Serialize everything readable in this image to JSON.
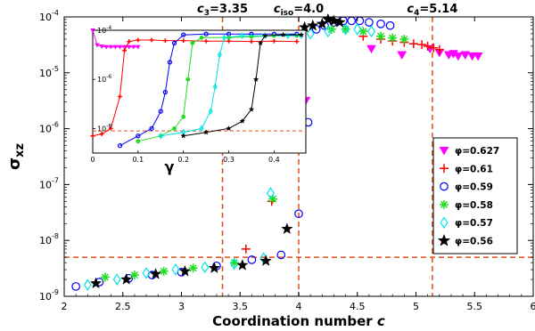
{
  "chart_data": [
    {
      "type": "scatter",
      "xlabel": "Coordination number c",
      "ylabel": "σxz",
      "xlim": [
        2,
        6
      ],
      "ylim": [
        1e-09,
        0.0001
      ],
      "yscale": "log",
      "x_ticks": [
        2,
        2.5,
        3,
        3.5,
        4,
        4.5,
        5,
        5.5,
        6
      ],
      "x_tick_labels": [
        "2",
        "2.5",
        "3",
        "3.5",
        "4",
        "4.5",
        "5",
        "5.5",
        "6"
      ],
      "y_ticks": [
        1e-09,
        1e-08,
        1e-07,
        1e-06,
        1e-05,
        0.0001
      ],
      "y_tick_labels": [
        [
          "10",
          "-9"
        ],
        [
          "10",
          "-8"
        ],
        [
          "10",
          "-7"
        ],
        [
          "10",
          "-6"
        ],
        [
          "10",
          "-5"
        ],
        [
          "10",
          "-4"
        ]
      ],
      "annotations": [
        {
          "main": "c",
          "sub": "3",
          "rest": "=3.35",
          "x": 3.35
        },
        {
          "main": "c",
          "sub": "iso",
          "rest": "=4.0",
          "x": 4.0
        },
        {
          "main": "c",
          "sub": "4",
          "rest": "=5.14",
          "x": 5.14
        }
      ],
      "dashed_vlines": [
        3.35,
        4.0,
        5.14
      ],
      "dashed_hline": 5e-09,
      "legend_position": "right",
      "series": [
        {
          "name": "φ=0.627",
          "marker": "triangle-down",
          "color": "#ff00ff",
          "points": [
            [
              4.88,
              2.1e-05
            ],
            [
              5.12,
              2.7e-05
            ],
            [
              5.2,
              2.3e-05
            ],
            [
              5.28,
              2.1e-05
            ],
            [
              5.32,
              2.2e-05
            ],
            [
              5.36,
              2e-05
            ],
            [
              5.42,
              2.1e-05
            ],
            [
              5.48,
              2e-05
            ],
            [
              5.53,
              2e-05
            ],
            [
              4.06,
              3.2e-06
            ],
            [
              4.62,
              2.7e-05
            ]
          ]
        },
        {
          "name": "φ=0.61",
          "marker": "plus",
          "color": "#ff0000",
          "points": [
            [
              3.55,
              7e-09
            ],
            [
              3.77,
              5e-08
            ],
            [
              4.55,
              4.5e-05
            ],
            [
              4.7,
              4e-05
            ],
            [
              4.8,
              3.7e-05
            ],
            [
              4.9,
              3.5e-05
            ],
            [
              4.98,
              3.3e-05
            ],
            [
              5.05,
              3.2e-05
            ],
            [
              5.1,
              3e-05
            ],
            [
              5.15,
              2.8e-05
            ],
            [
              5.2,
              2.6e-05
            ]
          ]
        },
        {
          "name": "φ=0.59",
          "marker": "circle",
          "color": "#0000ff",
          "points": [
            [
              2.1,
              1.5e-09
            ],
            [
              2.3,
              1.8e-09
            ],
            [
              2.55,
              2.1e-09
            ],
            [
              2.75,
              2.4e-09
            ],
            [
              3.0,
              2.7e-09
            ],
            [
              3.3,
              3.5e-09
            ],
            [
              3.6,
              4.5e-09
            ],
            [
              3.85,
              5.5e-09
            ],
            [
              4.0,
              3e-08
            ],
            [
              4.08,
              1.3e-06
            ],
            [
              4.15,
              6e-05
            ],
            [
              4.22,
              7e-05
            ],
            [
              4.3,
              8e-05
            ],
            [
              4.38,
              8.5e-05
            ],
            [
              4.45,
              8.5e-05
            ],
            [
              4.52,
              8.5e-05
            ],
            [
              4.6,
              8e-05
            ],
            [
              4.7,
              7.5e-05
            ],
            [
              4.78,
              7e-05
            ]
          ]
        },
        {
          "name": "φ=0.58",
          "marker": "asterisk",
          "color": "#22dd22",
          "points": [
            [
              2.35,
              2.2e-09
            ],
            [
              2.6,
              2.4e-09
            ],
            [
              2.85,
              2.8e-09
            ],
            [
              3.1,
              3.2e-09
            ],
            [
              3.45,
              4e-09
            ],
            [
              3.78,
              5.5e-08
            ],
            [
              4.02,
              1.7e-05
            ],
            [
              4.28,
              6e-05
            ],
            [
              4.4,
              6e-05
            ],
            [
              4.55,
              5.5e-05
            ],
            [
              4.7,
              4.5e-05
            ],
            [
              4.8,
              4.2e-05
            ],
            [
              4.9,
              4e-05
            ]
          ]
        },
        {
          "name": "φ=0.57",
          "marker": "diamond",
          "color": "#00e5e5",
          "points": [
            [
              2.2,
              1.6e-09
            ],
            [
              2.45,
              2e-09
            ],
            [
              2.7,
              2.6e-09
            ],
            [
              2.95,
              3e-09
            ],
            [
              3.2,
              3.3e-09
            ],
            [
              3.45,
              3.8e-09
            ],
            [
              3.7,
              4.8e-09
            ],
            [
              3.76,
              7e-08
            ],
            [
              3.92,
              1.1e-06
            ],
            [
              4.02,
              4.5e-05
            ],
            [
              4.1,
              5e-05
            ],
            [
              4.25,
              5.5e-05
            ],
            [
              4.4,
              6e-05
            ],
            [
              4.5,
              6e-05
            ],
            [
              4.62,
              5.5e-05
            ]
          ]
        },
        {
          "name": "φ=0.56",
          "marker": "star",
          "color": "#000000",
          "points": [
            [
              2.27,
              1.7e-09
            ],
            [
              2.53,
              2e-09
            ],
            [
              2.78,
              2.5e-09
            ],
            [
              3.03,
              2.8e-09
            ],
            [
              3.28,
              3.2e-09
            ],
            [
              3.52,
              3.6e-09
            ],
            [
              3.72,
              4.3e-09
            ],
            [
              3.9,
              1.6e-08
            ],
            [
              4.05,
              6.5e-05
            ],
            [
              4.12,
              7e-05
            ],
            [
              4.2,
              7.5e-05
            ],
            [
              4.25,
              9e-05
            ],
            [
              4.3,
              8.5e-05
            ],
            [
              4.35,
              8e-05
            ]
          ]
        }
      ]
    },
    {
      "type": "line",
      "xlabel": "γ",
      "ylabel": "",
      "xlim": [
        0,
        0.47
      ],
      "ylim": [
        1e-09,
        0.0001
      ],
      "yscale": "log",
      "x_ticks": [
        0,
        0.1,
        0.2,
        0.3,
        0.4
      ],
      "x_tick_labels": [
        "0",
        "0.1",
        "0.2",
        "0.3",
        "0.4"
      ],
      "y_ticks": [
        1e-08,
        1e-06,
        0.0001
      ],
      "y_tick_labels": [
        [
          "10",
          "-8"
        ],
        [
          "10",
          "-6"
        ],
        [
          "10",
          "-4"
        ]
      ],
      "dashed_hline": 8e-09,
      "series": [
        {
          "name": "φ=0.627",
          "marker": "triangle-down",
          "color": "#ff00ff",
          "points": [
            [
              0,
              0.0001
            ],
            [
              0.01,
              2.5e-05
            ],
            [
              0.02,
              2.2e-05
            ],
            [
              0.03,
              2.1e-05
            ],
            [
              0.04,
              2.1e-05
            ],
            [
              0.05,
              2.1e-05
            ],
            [
              0.06,
              2.1e-05
            ],
            [
              0.07,
              2.1e-05
            ],
            [
              0.08,
              2.1e-05
            ],
            [
              0.09,
              2.1e-05
            ],
            [
              0.1,
              2.1e-05
            ]
          ]
        },
        {
          "name": "φ=0.61",
          "marker": "plus",
          "color": "#ff0000",
          "points": [
            [
              0,
              5e-09
            ],
            [
              0.02,
              6e-09
            ],
            [
              0.04,
              1e-08
            ],
            [
              0.06,
              2e-07
            ],
            [
              0.07,
              1.5e-05
            ],
            [
              0.08,
              3.5e-05
            ],
            [
              0.1,
              4e-05
            ],
            [
              0.13,
              4e-05
            ],
            [
              0.16,
              3.8e-05
            ],
            [
              0.2,
              3.8e-05
            ],
            [
              0.25,
              3.6e-05
            ],
            [
              0.3,
              3.6e-05
            ],
            [
              0.35,
              3.5e-05
            ],
            [
              0.4,
              3.6e-05
            ],
            [
              0.45,
              3.5e-05
            ]
          ]
        },
        {
          "name": "φ=0.59",
          "marker": "circle",
          "color": "#0000ff",
          "points": [
            [
              0.06,
              2e-09
            ],
            [
              0.1,
              5e-09
            ],
            [
              0.13,
              1e-08
            ],
            [
              0.15,
              5e-08
            ],
            [
              0.16,
              3e-07
            ],
            [
              0.17,
              5e-06
            ],
            [
              0.18,
              3e-05
            ],
            [
              0.2,
              6.5e-05
            ],
            [
              0.25,
              7e-05
            ],
            [
              0.3,
              7e-05
            ],
            [
              0.35,
              7e-05
            ],
            [
              0.4,
              7e-05
            ],
            [
              0.45,
              7e-05
            ]
          ]
        },
        {
          "name": "φ=0.58",
          "marker": "asterisk",
          "color": "#22dd22",
          "points": [
            [
              0.1,
              3e-09
            ],
            [
              0.15,
              5e-09
            ],
            [
              0.18,
              1e-08
            ],
            [
              0.2,
              3e-08
            ],
            [
              0.21,
              1e-06
            ],
            [
              0.22,
              3e-05
            ],
            [
              0.24,
              5e-05
            ],
            [
              0.3,
              5e-05
            ],
            [
              0.35,
              5.5e-05
            ],
            [
              0.4,
              6e-05
            ],
            [
              0.45,
              6e-05
            ]
          ]
        },
        {
          "name": "φ=0.57",
          "marker": "diamond",
          "color": "#00e5e5",
          "points": [
            [
              0.15,
              5e-09
            ],
            [
              0.2,
              7e-09
            ],
            [
              0.24,
              1e-08
            ],
            [
              0.26,
              5e-08
            ],
            [
              0.27,
              5e-07
            ],
            [
              0.28,
              1e-05
            ],
            [
              0.29,
              5e-05
            ],
            [
              0.33,
              6e-05
            ],
            [
              0.38,
              6e-05
            ],
            [
              0.43,
              6e-05
            ],
            [
              0.46,
              6e-05
            ]
          ]
        },
        {
          "name": "φ=0.56",
          "marker": "star",
          "color": "#000000",
          "points": [
            [
              0.2,
              5e-09
            ],
            [
              0.25,
              7e-09
            ],
            [
              0.3,
              1e-08
            ],
            [
              0.33,
              2e-08
            ],
            [
              0.35,
              6e-08
            ],
            [
              0.36,
              1e-06
            ],
            [
              0.37,
              3e-05
            ],
            [
              0.38,
              6e-05
            ],
            [
              0.42,
              6.5e-05
            ],
            [
              0.46,
              6.5e-05
            ]
          ]
        }
      ]
    }
  ]
}
